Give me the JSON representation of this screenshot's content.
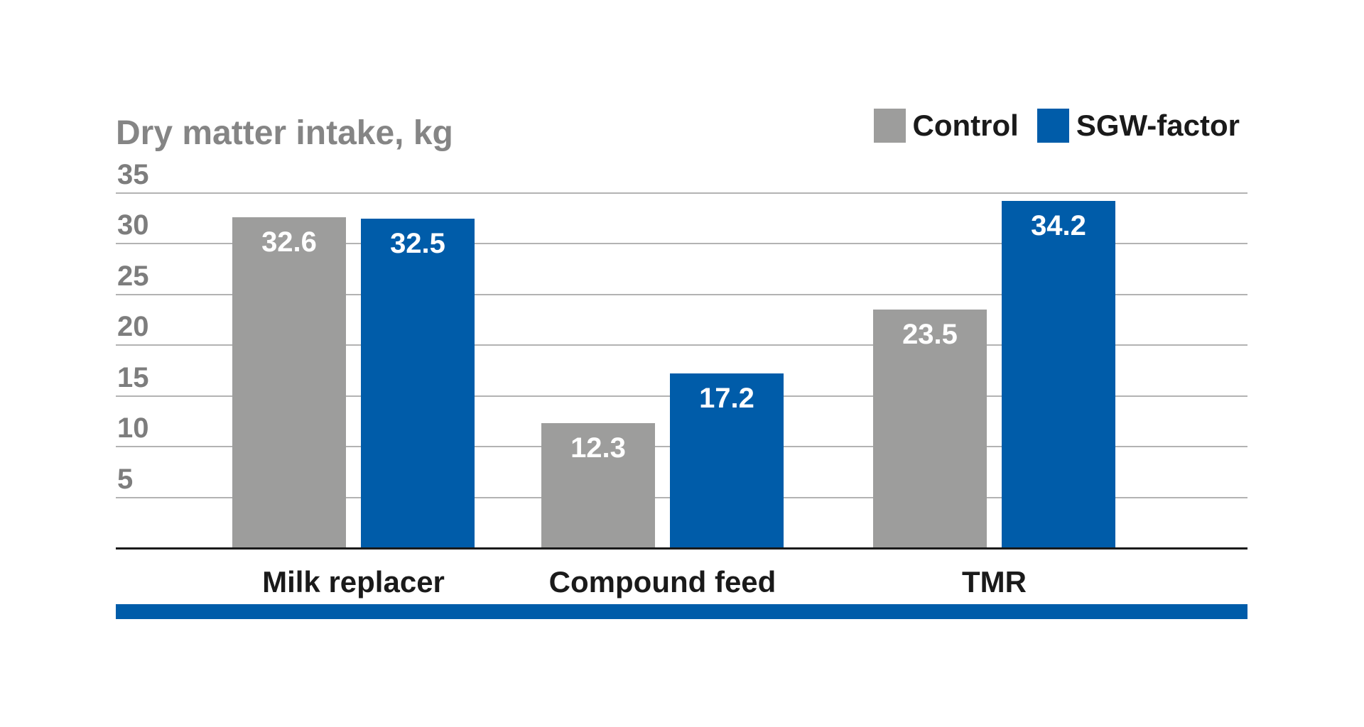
{
  "title": "Dry matter intake, kg",
  "chart_data": {
    "type": "bar",
    "title": "Dry matter intake, kg",
    "categories": [
      "Milk replacer",
      "Compound feed",
      "TMR"
    ],
    "series": [
      {
        "name": "Control",
        "color": "#9D9D9C",
        "values": [
          32.6,
          12.3,
          23.5
        ]
      },
      {
        "name": "SGW-factor",
        "color": "#005CA9",
        "values": [
          32.5,
          17.2,
          34.2
        ]
      }
    ],
    "yticks": [
      5,
      10,
      15,
      20,
      25,
      30,
      35
    ],
    "ylim": [
      0,
      35
    ],
    "grid": true,
    "legend_position": "top-right",
    "value_labels": "inside-top",
    "value_format": "one-decimal"
  },
  "colors": {
    "control_bar": "#9D9D9C",
    "sgw_bar": "#005CA9",
    "title_text": "#858585",
    "tick_text": "#7D7D7D",
    "gridline": "#B3B3B3",
    "axis_line": "#1A1A1A",
    "category_text": "#1A1A1A",
    "value_text": "#FFFFFF",
    "bottom_accent": "#005CA9",
    "background": "#FFFFFF"
  }
}
